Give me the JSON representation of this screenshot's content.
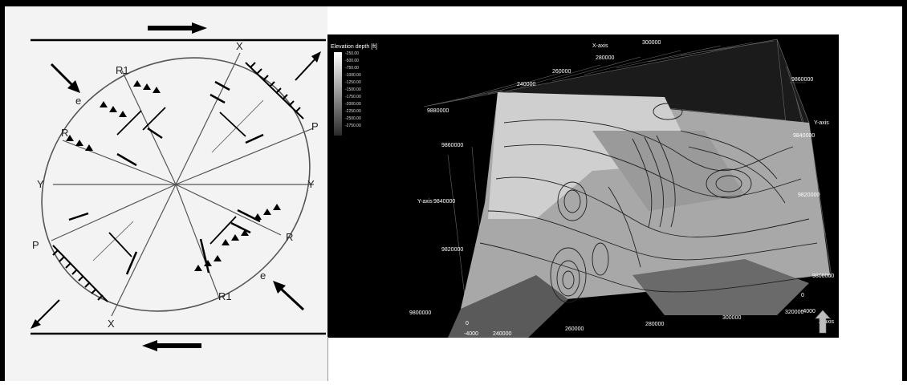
{
  "strain_ellipse": {
    "labels": {
      "x_top": "X",
      "x_bottom": "X",
      "r1_top": "R1",
      "r1_bottom": "R1",
      "r_left": "R",
      "r_right": "R",
      "y_left": "Y",
      "y_right": "Y",
      "p_left": "P",
      "p_right": "P",
      "e_top": "e",
      "e_bottom": "e"
    }
  },
  "surface_map": {
    "legend": {
      "title": "Elevation depth [ft]",
      "values": [
        "-250.00",
        "-500.00",
        "-750.00",
        "-1000.00",
        "-1250.00",
        "-1500.00",
        "-1750.00",
        "-2000.00",
        "-2250.00",
        "-2500.00",
        "-2750.00"
      ]
    },
    "x_axis": {
      "label": "X-axis",
      "ticks_top": [
        "240000",
        "260000",
        "280000",
        "300000"
      ],
      "ticks_bottom": [
        "240000",
        "260000",
        "280000",
        "300000",
        "320000"
      ]
    },
    "y_axis": {
      "label_left": "Y-axis",
      "label_right": "Y-axis",
      "ticks_left": [
        "9800000",
        "9820000",
        "9840000",
        "9860000",
        "9880000"
      ],
      "ticks_right": [
        "9800000",
        "9820000",
        "9840000",
        "9860000"
      ]
    },
    "z_axis": {
      "label": "Z-axis",
      "ticks": [
        "0",
        "-4000"
      ],
      "ticks_front": [
        "0",
        "-4000"
      ]
    }
  },
  "colors": {
    "frame": "#000000",
    "plot_bg": "#000000",
    "ellipse_line": "#555555"
  }
}
